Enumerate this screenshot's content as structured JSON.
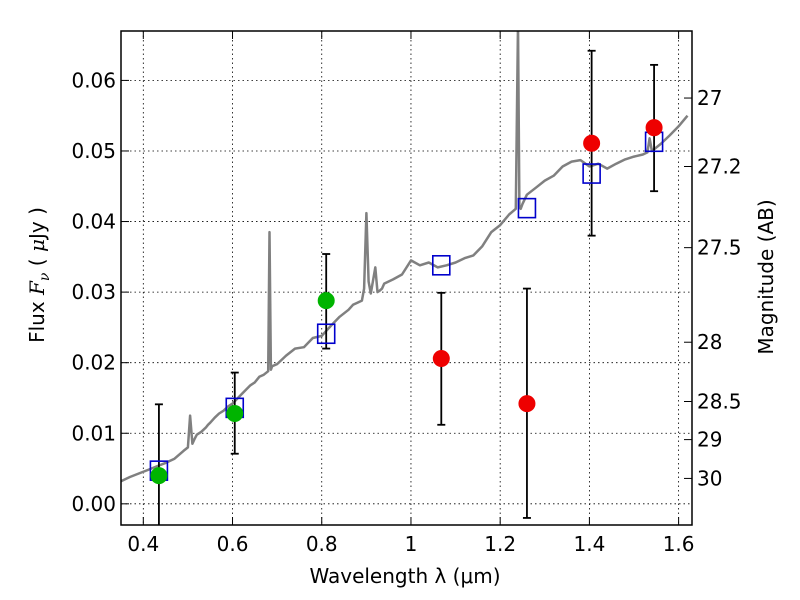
{
  "chart_data": {
    "type": "scatter",
    "xlabel": "Wavelength  λ (μm)",
    "ylabel": "Flux  F_ν ( μJy )",
    "y2label": "Magnitude (AB)",
    "xlim": [
      0.35,
      1.63
    ],
    "ylim": [
      -0.003,
      0.067
    ],
    "grid": true,
    "x_ticks": [
      0.4,
      0.6,
      0.8,
      1.0,
      1.2,
      1.4,
      1.6
    ],
    "x_tick_labels": [
      "0.4",
      "0.6",
      "0.8",
      "1",
      "1.2",
      "1.4",
      "1.6"
    ],
    "y_ticks": [
      0.0,
      0.01,
      0.02,
      0.03,
      0.04,
      0.05,
      0.06
    ],
    "y_tick_labels": [
      "0.00",
      "0.01",
      "0.02",
      "0.03",
      "0.04",
      "0.05",
      "0.06"
    ],
    "y2_ticks": [
      {
        "label": "27",
        "flux": 0.0575
      },
      {
        "label": "27.2",
        "flux": 0.0478
      },
      {
        "label": "27.5",
        "flux": 0.0363
      },
      {
        "label": "28",
        "flux": 0.0229
      },
      {
        "label": "28.5",
        "flux": 0.0145
      },
      {
        "label": "29",
        "flux": 0.0091
      },
      {
        "label": "30",
        "flux": 0.0036
      }
    ],
    "colors": {
      "spectrum": "#808080",
      "model": "#0000cc",
      "green": "#00b400",
      "red": "#ee0000",
      "errorbar": "#000000"
    },
    "spectrum": {
      "x": [
        0.35,
        0.37,
        0.39,
        0.41,
        0.43,
        0.45,
        0.47,
        0.49,
        0.5,
        0.505,
        0.51,
        0.515,
        0.52,
        0.53,
        0.54,
        0.545,
        0.55,
        0.56,
        0.57,
        0.58,
        0.59,
        0.6,
        0.62,
        0.64,
        0.65,
        0.66,
        0.67,
        0.68,
        0.683,
        0.686,
        0.689,
        0.7,
        0.72,
        0.74,
        0.76,
        0.78,
        0.8,
        0.81,
        0.82,
        0.84,
        0.86,
        0.87,
        0.88,
        0.89,
        0.895,
        0.9,
        0.905,
        0.91,
        0.92,
        0.925,
        0.93,
        0.935,
        0.94,
        0.96,
        0.98,
        1.0,
        1.02,
        1.04,
        1.06,
        1.08,
        1.1,
        1.12,
        1.14,
        1.16,
        1.18,
        1.2,
        1.22,
        1.235,
        1.24,
        1.243,
        1.246,
        1.25,
        1.26,
        1.28,
        1.3,
        1.32,
        1.34,
        1.36,
        1.38,
        1.4,
        1.42,
        1.44,
        1.46,
        1.48,
        1.5,
        1.52,
        1.53,
        1.535,
        1.54,
        1.56,
        1.58,
        1.6,
        1.62
      ],
      "y": [
        0.0032,
        0.0038,
        0.0043,
        0.0048,
        0.0053,
        0.0058,
        0.0064,
        0.0075,
        0.008,
        0.0125,
        0.0085,
        0.0092,
        0.0098,
        0.0102,
        0.0108,
        0.0112,
        0.0115,
        0.0122,
        0.0128,
        0.0132,
        0.0138,
        0.0142,
        0.0155,
        0.0168,
        0.0172,
        0.018,
        0.0183,
        0.0188,
        0.0385,
        0.019,
        0.0195,
        0.0198,
        0.021,
        0.022,
        0.0222,
        0.0235,
        0.0238,
        0.0245,
        0.0252,
        0.0265,
        0.0275,
        0.0282,
        0.0285,
        0.0288,
        0.0305,
        0.0412,
        0.0315,
        0.0298,
        0.0335,
        0.03,
        0.0302,
        0.0305,
        0.0312,
        0.0318,
        0.0325,
        0.0345,
        0.0338,
        0.0342,
        0.0335,
        0.0338,
        0.0342,
        0.0348,
        0.0352,
        0.0365,
        0.0385,
        0.0395,
        0.041,
        0.0418,
        0.068,
        0.042,
        0.0418,
        0.0425,
        0.0438,
        0.0448,
        0.0458,
        0.0465,
        0.0478,
        0.0485,
        0.0487,
        0.0478,
        0.0482,
        0.0475,
        0.0482,
        0.0488,
        0.0492,
        0.0495,
        0.0498,
        0.0518,
        0.05,
        0.051,
        0.0522,
        0.0535,
        0.055
      ]
    },
    "model_points": {
      "x": [
        0.435,
        0.605,
        0.81,
        1.068,
        1.26,
        1.405,
        1.545
      ],
      "y": [
        0.0047,
        0.0136,
        0.0241,
        0.0338,
        0.0419,
        0.0468,
        0.0513
      ]
    },
    "green_points": {
      "x": [
        0.435,
        0.605,
        0.81
      ],
      "y": [
        0.004,
        0.0128,
        0.0288
      ],
      "err_low": [
        0.0075,
        0.0057,
        0.0068
      ],
      "err_high": [
        0.0101,
        0.0058,
        0.0066
      ]
    },
    "red_points": {
      "x": [
        1.068,
        1.26,
        1.405,
        1.545
      ],
      "y": [
        0.0206,
        0.0142,
        0.0511,
        0.0533
      ],
      "err_low": [
        0.0094,
        0.0162,
        0.0131,
        0.009
      ],
      "err_high": [
        0.0093,
        0.0163,
        0.0131,
        0.0089
      ]
    }
  }
}
